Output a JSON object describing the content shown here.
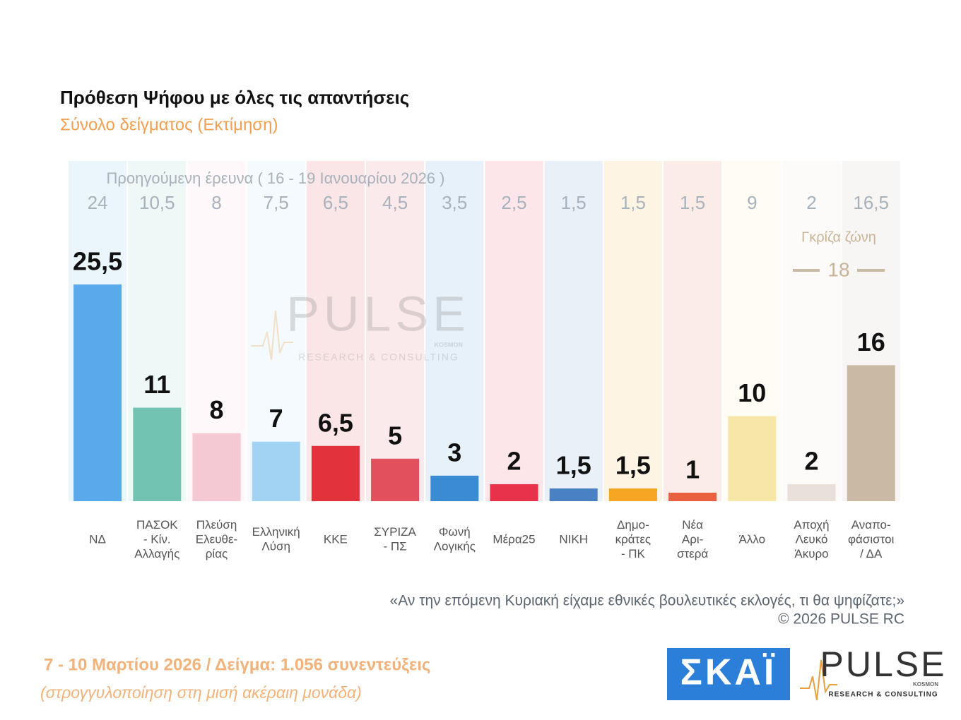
{
  "chart_data": {
    "type": "bar",
    "title": "Πρόθεση Ψήφου με όλες τις απαντήσεις",
    "subtitle": "Σύνολο δείγματος   (Εκτίμηση)",
    "categories": [
      [
        "ΝΔ"
      ],
      [
        "ΠΑΣΟΚ",
        "- Κίν.",
        "Αλλαγής"
      ],
      [
        "Πλεύση",
        "Ελευθε-",
        "ρίας"
      ],
      [
        "Ελληνική",
        "Λύση"
      ],
      [
        "ΚΚΕ"
      ],
      [
        "ΣΥΡΙΖΑ",
        "- ΠΣ"
      ],
      [
        "Φωνή",
        "Λογικής"
      ],
      [
        "Μέρα25"
      ],
      [
        "ΝΙΚΗ"
      ],
      [
        "Δημο-",
        "κράτες",
        "- ΠΚ"
      ],
      [
        "Νέα",
        "Αρι-",
        "στερά"
      ],
      [
        "Άλλο"
      ],
      [
        "Αποχή",
        "Λευκό",
        "Άκυρο"
      ],
      [
        "Αναπο-",
        "φάσιστοι",
        "/ ΔΑ"
      ]
    ],
    "values": [
      25.5,
      11,
      8,
      7,
      6.5,
      5,
      3,
      2,
      1.5,
      1.5,
      1,
      10,
      2,
      16
    ],
    "value_labels": [
      "25,5",
      "11",
      "8",
      "7",
      "6,5",
      "5",
      "3",
      "2",
      "1,5",
      "1,5",
      "1",
      "10",
      "2",
      "16"
    ],
    "colors": [
      "#5aa9ea",
      "#72c3b2",
      "#f4c9d3",
      "#a3d3f2",
      "#e2323c",
      "#e2505d",
      "#3b8bd2",
      "#e8324b",
      "#4a80c4",
      "#f6a623",
      "#e8603f",
      "#f6e6a8",
      "#e9e1d9",
      "#c9b9a5"
    ],
    "previous": {
      "label": "Προηγούμενη έρευνα ( 16 - 19 Ιανουαρίου 2026 )",
      "values": [
        24,
        10.5,
        8,
        7.5,
        6.5,
        4.5,
        3.5,
        2.5,
        1.5,
        1.5,
        1.5,
        9,
        2,
        16.5
      ],
      "value_labels": [
        "24",
        "10,5",
        "8",
        "7,5",
        "6,5",
        "4,5",
        "3,5",
        "2,5",
        "1,5",
        "1,5",
        "1,5",
        "9",
        "2",
        "16,5"
      ]
    },
    "gray_zone": {
      "label": "Γκρίζα ζώνη",
      "value": 18
    },
    "question": "«Αν την επόμενη Κυριακή είχαμε εθνικές βουλευτικές εκλογές, τι θα ψηφίζατε;»",
    "copyright": "©  2026  PULSE RC",
    "watermark": {
      "name": "PULSE",
      "tag": "KOSMON",
      "sub": "RESEARCH & CONSULTING"
    }
  },
  "footer": {
    "fieldwork": "7 - 10  Μαρτίου 2026  /  Δείγμα:  1.056 συνεντεύξεις",
    "note": "(στρογγυλοποίηση στη μισή ακέραιη μονάδα)"
  },
  "logos": {
    "skai": "ΣΚΑΪ",
    "pulse": "PULSE",
    "pulse_tag": "KOSMON",
    "pulse_sub": "RESEARCH & CONSULTING"
  }
}
